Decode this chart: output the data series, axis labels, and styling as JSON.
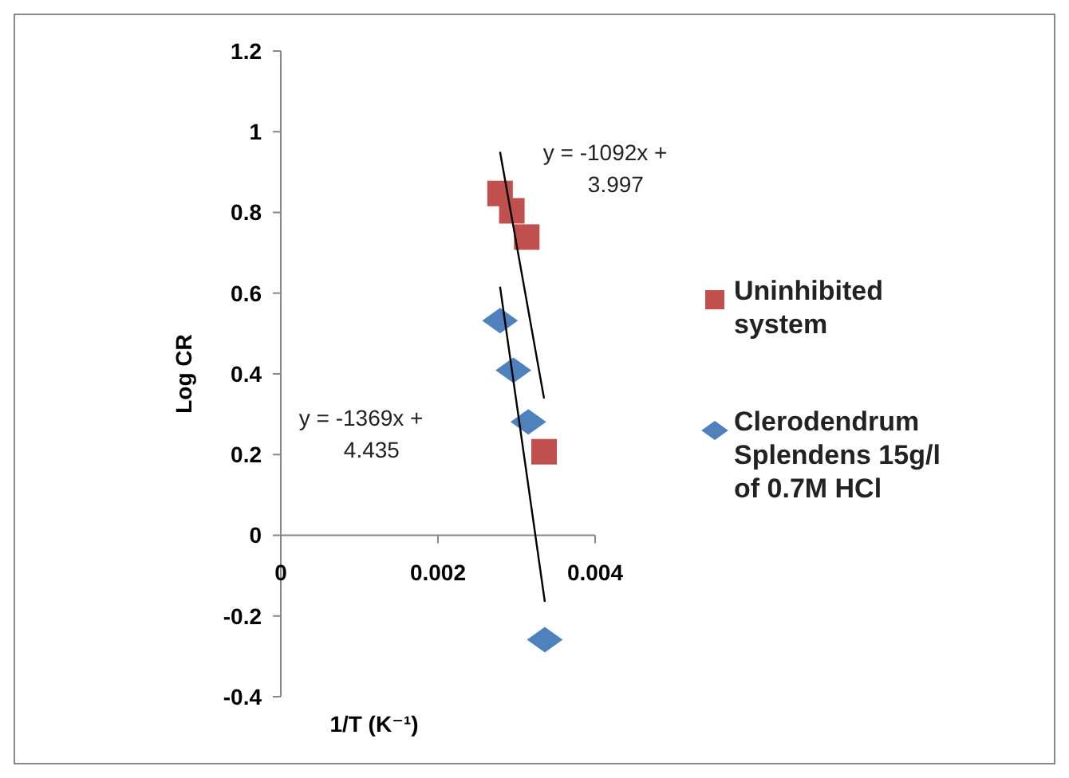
{
  "chart_data": {
    "type": "scatter",
    "xlabel": "1/T (K⁻¹)",
    "ylabel": "Log CR",
    "xlim": [
      0,
      0.004
    ],
    "xticks": [
      0,
      0.002,
      0.004
    ],
    "ylim": [
      -0.4,
      1.2
    ],
    "yticks": [
      -0.4,
      -0.2,
      0,
      0.2,
      0.4,
      0.6,
      0.8,
      1,
      1.2
    ],
    "grid": false,
    "legend": "right",
    "series": [
      {
        "name": "Uninhibited system",
        "color": "#c0504d",
        "marker": "square",
        "x": [
          0.00279,
          0.00294,
          0.00313,
          0.00335
        ],
        "values": [
          0.847,
          0.804,
          0.739,
          0.207
        ]
      },
      {
        "name": "Clerodendrum Splendens 15g/l of 0.7M HCl",
        "color": "#4f81bd",
        "marker": "diamond",
        "x": [
          0.00279,
          0.00296,
          0.00315,
          0.00336
        ],
        "values": [
          0.532,
          0.409,
          0.281,
          -0.259
        ]
      },
      {
        "type": "line",
        "color": "#000000",
        "marker": "none",
        "x": [
          0.00279,
          0.00335
        ],
        "values": [
          0.95,
          0.339
        ]
      },
      {
        "type": "line",
        "color": "#000000",
        "marker": "none",
        "x": [
          0.00279,
          0.00336
        ],
        "values": [
          0.616,
          -0.165
        ]
      }
    ],
    "annotations": [
      "y = -1092x + 3.997",
      "y = -1369x + 4.435"
    ]
  }
}
